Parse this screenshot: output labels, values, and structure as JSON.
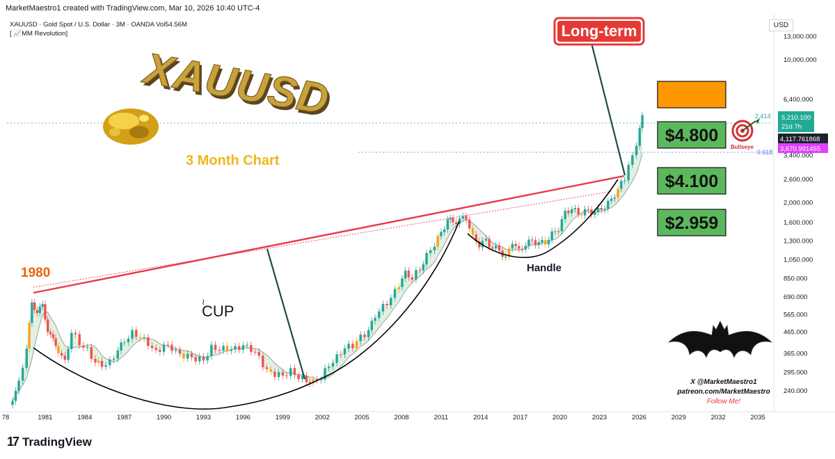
{
  "header": {
    "attribution": "MarketMaestro1 created with TradingView.com, Mar 10, 2026 10:40 UTC-4",
    "symbol_line": "XAUUSD · Gold Spot / U.S. Dollar · 3M · OANDA  Vol54.56M",
    "indicator_line": "[ 📈MM Revolution]",
    "currency": "USD"
  },
  "branding": {
    "title_art": "XAUUSD",
    "subtitle": "3 Month Chart",
    "long_term_stamp": "Long-term",
    "cup_label": "CUP",
    "handle_label": "Handle",
    "year_1980": "1980",
    "bullseye_label": "Bullseye",
    "watermark_line1": "X @MarketMaestro1",
    "watermark_line2": "patreon.com/MarketMaestro",
    "watermark_line3": "Follow Me!",
    "footer": "TradingView"
  },
  "colors": {
    "bull": "#26a69a",
    "bear": "#ef5350",
    "neutral_bar": "#f7a21b",
    "trendline": "#e8394a",
    "target_green": "#5cb85c",
    "target_orange": "#ff9800",
    "fib_24": "#22ab94",
    "fib_618": "#5b6cf5",
    "price_label": "#22ab94",
    "magenta_label": "#e040fb"
  },
  "chart_data": {
    "type": "candlestick",
    "scale": "log",
    "x_axis_ticks": [
      "78",
      "1981",
      "1984",
      "1987",
      "1990",
      "1993",
      "1996",
      "1999",
      "2002",
      "2005",
      "2008",
      "2011",
      "2014",
      "2017",
      "2020",
      "2023",
      "2026",
      "2029",
      "2032",
      "2035"
    ],
    "y_axis_ticks": [
      "13,000.000",
      "10,000.000",
      "6,400.000",
      "3,400.000",
      "2,600.000",
      "2,000.000",
      "1,600.000",
      "1,300.000",
      "1,050.000",
      "850.000",
      "690.000",
      "565.000",
      "465.000",
      "365.000",
      "295.000",
      "240.000"
    ],
    "y_range": [
      200,
      14000
    ],
    "price_labels": [
      {
        "value": "5,210.100",
        "sub": "21d 7h",
        "kind": "current"
      },
      {
        "value": "4,117.761868",
        "kind": "dark"
      },
      {
        "value": "3,670.991455",
        "kind": "magenta"
      }
    ],
    "fib_levels": [
      {
        "label": "2.414",
        "price": 4900
      },
      {
        "label": "0.618",
        "price": 3700
      }
    ],
    "targets": [
      "",
      "$4.800",
      "$4.100",
      "$2.959"
    ],
    "closes": [
      {
        "t": 1978.3,
        "p": 205
      },
      {
        "t": 1979.0,
        "p": 260
      },
      {
        "t": 1979.6,
        "p": 390
      },
      {
        "t": 1980.0,
        "p": 640
      },
      {
        "t": 1980.4,
        "p": 590
      },
      {
        "t": 1980.8,
        "p": 620
      },
      {
        "t": 1981.2,
        "p": 480
      },
      {
        "t": 1981.6,
        "p": 420
      },
      {
        "t": 1982.0,
        "p": 380
      },
      {
        "t": 1982.5,
        "p": 330
      },
      {
        "t": 1983.0,
        "p": 470
      },
      {
        "t": 1983.6,
        "p": 410
      },
      {
        "t": 1984.2,
        "p": 380
      },
      {
        "t": 1984.8,
        "p": 330
      },
      {
        "t": 1985.3,
        "p": 320
      },
      {
        "t": 1985.9,
        "p": 330
      },
      {
        "t": 1986.5,
        "p": 380
      },
      {
        "t": 1987.0,
        "p": 420
      },
      {
        "t": 1987.6,
        "p": 460
      },
      {
        "t": 1988.2,
        "p": 440
      },
      {
        "t": 1988.8,
        "p": 410
      },
      {
        "t": 1989.4,
        "p": 370
      },
      {
        "t": 1990.0,
        "p": 400
      },
      {
        "t": 1990.6,
        "p": 390
      },
      {
        "t": 1991.2,
        "p": 360
      },
      {
        "t": 1991.8,
        "p": 355
      },
      {
        "t": 1992.4,
        "p": 345
      },
      {
        "t": 1993.0,
        "p": 340
      },
      {
        "t": 1993.6,
        "p": 390
      },
      {
        "t": 1994.2,
        "p": 385
      },
      {
        "t": 1994.8,
        "p": 385
      },
      {
        "t": 1995.4,
        "p": 385
      },
      {
        "t": 1996.0,
        "p": 400
      },
      {
        "t": 1996.6,
        "p": 385
      },
      {
        "t": 1997.2,
        "p": 350
      },
      {
        "t": 1997.8,
        "p": 300
      },
      {
        "t": 1998.4,
        "p": 290
      },
      {
        "t": 1999.0,
        "p": 285
      },
      {
        "t": 1999.6,
        "p": 300
      },
      {
        "t": 2000.2,
        "p": 280
      },
      {
        "t": 2000.8,
        "p": 270
      },
      {
        "t": 2001.3,
        "p": 265
      },
      {
        "t": 2001.9,
        "p": 280
      },
      {
        "t": 2002.5,
        "p": 320
      },
      {
        "t": 2003.1,
        "p": 350
      },
      {
        "t": 2003.7,
        "p": 390
      },
      {
        "t": 2004.3,
        "p": 400
      },
      {
        "t": 2004.9,
        "p": 440
      },
      {
        "t": 2005.5,
        "p": 470
      },
      {
        "t": 2006.0,
        "p": 560
      },
      {
        "t": 2006.6,
        "p": 620
      },
      {
        "t": 2007.2,
        "p": 680
      },
      {
        "t": 2007.8,
        "p": 800
      },
      {
        "t": 2008.3,
        "p": 900
      },
      {
        "t": 2008.8,
        "p": 860
      },
      {
        "t": 2009.4,
        "p": 950
      },
      {
        "t": 2009.9,
        "p": 1100
      },
      {
        "t": 2010.5,
        "p": 1250
      },
      {
        "t": 2011.0,
        "p": 1420
      },
      {
        "t": 2011.5,
        "p": 1650
      },
      {
        "t": 2011.9,
        "p": 1600
      },
      {
        "t": 2012.4,
        "p": 1650
      },
      {
        "t": 2012.9,
        "p": 1700
      },
      {
        "t": 2013.4,
        "p": 1350
      },
      {
        "t": 2013.9,
        "p": 1250
      },
      {
        "t": 2014.4,
        "p": 1300
      },
      {
        "t": 2014.9,
        "p": 1200
      },
      {
        "t": 2015.4,
        "p": 1180
      },
      {
        "t": 2015.9,
        "p": 1060
      },
      {
        "t": 2016.4,
        "p": 1300
      },
      {
        "t": 2016.9,
        "p": 1150
      },
      {
        "t": 2017.4,
        "p": 1260
      },
      {
        "t": 2017.9,
        "p": 1300
      },
      {
        "t": 2018.4,
        "p": 1270
      },
      {
        "t": 2018.9,
        "p": 1280
      },
      {
        "t": 2019.4,
        "p": 1400
      },
      {
        "t": 2019.9,
        "p": 1500
      },
      {
        "t": 2020.4,
        "p": 1780
      },
      {
        "t": 2020.9,
        "p": 1880
      },
      {
        "t": 2021.4,
        "p": 1760
      },
      {
        "t": 2021.9,
        "p": 1820
      },
      {
        "t": 2022.4,
        "p": 1800
      },
      {
        "t": 2022.9,
        "p": 1820
      },
      {
        "t": 2023.4,
        "p": 1920
      },
      {
        "t": 2023.9,
        "p": 2060
      },
      {
        "t": 2024.4,
        "p": 2330
      },
      {
        "t": 2024.9,
        "p": 2620
      },
      {
        "t": 2025.2,
        "p": 3100
      },
      {
        "t": 2025.5,
        "p": 3300
      },
      {
        "t": 2025.8,
        "p": 3900
      },
      {
        "t": 2026.05,
        "p": 4700
      },
      {
        "t": 2026.25,
        "p": 5210
      }
    ]
  }
}
